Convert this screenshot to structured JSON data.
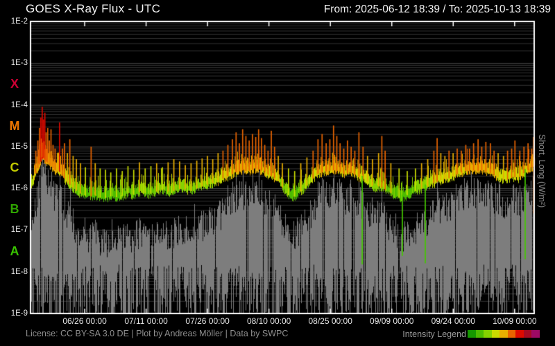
{
  "header": {
    "title": "GOES X-Ray Flux - UTC",
    "date_range": "From: 2025-06-12 18:39 / To: 2025-10-13 18:39"
  },
  "footer": {
    "license": "License: CC BY-SA 3.0 DE | Plot by Andreas Möller | Data by SWPC",
    "legend_label": "Intensity Legend"
  },
  "chart_data": {
    "type": "line",
    "title": "GOES X-Ray Flux - UTC",
    "x_range_labels": [
      "2025-06-12 18:39",
      "2025-10-13 18:39"
    ],
    "total_days": 123,
    "y_scale": "log",
    "y_range": [
      1e-09,
      0.01
    ],
    "grid": "log-minor-on",
    "legend_position": "bottom-right",
    "ylabel_right": "Short, Long (W/m²)",
    "y_ticks": [
      {
        "label": "1E-2",
        "exp": -2
      },
      {
        "label": "1E-3",
        "exp": -3
      },
      {
        "label": "1E-4",
        "exp": -4
      },
      {
        "label": "1E-5",
        "exp": -5
      },
      {
        "label": "1E-6",
        "exp": -6
      },
      {
        "label": "1E-7",
        "exp": -7
      },
      {
        "label": "1E-8",
        "exp": -8
      },
      {
        "label": "1E-9",
        "exp": -9
      }
    ],
    "flare_classes": [
      {
        "label": "X",
        "color": "#cc0033",
        "log_center": -3.5
      },
      {
        "label": "M",
        "color": "#ee7700",
        "log_center": -4.5
      },
      {
        "label": "C",
        "color": "#c3cc00",
        "log_center": -5.5
      },
      {
        "label": "B",
        "color": "#2fa500",
        "log_center": -6.5
      },
      {
        "label": "A",
        "color": "#39c400",
        "log_center": -7.5
      }
    ],
    "x_ticks": [
      {
        "label": "06/26 00:00",
        "day": 13.2229
      },
      {
        "label": "07/11 00:00",
        "day": 28.2229
      },
      {
        "label": "07/26 00:00",
        "day": 43.2229
      },
      {
        "label": "08/10 00:00",
        "day": 58.2229
      },
      {
        "label": "08/25 00:00",
        "day": 73.2229
      },
      {
        "label": "09/09 00:00",
        "day": 88.2229
      },
      {
        "label": "09/24 00:00",
        "day": 103.2229
      },
      {
        "label": "10/09 00:00",
        "day": 118.2229
      }
    ],
    "intensity_legend": {
      "colors": [
        "#159800",
        "#4cbb00",
        "#85d200",
        "#c9dc00",
        "#e8ae00",
        "#e86400",
        "#dc0a00",
        "#a50a23",
        "#9c0a64"
      ],
      "thresholds": [
        6e-07,
        1.2e-06,
        2e-06,
        3.5e-06,
        8e-06,
        3.5e-05,
        0.0001,
        0.0005
      ]
    },
    "series": [
      {
        "name": "Long",
        "style": "intensity-colored-line",
        "baseline_daily": [
          1.3e-06,
          2.2e-06,
          4e-06,
          6.5e-06,
          5e-06,
          4e-06,
          3.2e-06,
          3e-06,
          2.2e-06,
          1.6e-06,
          1.3e-06,
          1.05e-06,
          9e-07,
          8e-07,
          7.5e-07,
          7.5e-07,
          8e-07,
          7e-07,
          6.8e-07,
          7e-07,
          8e-07,
          7.2e-07,
          7.5e-07,
          8e-07,
          9e-07,
          8e-07,
          9e-07,
          1e-06,
          9e-07,
          8.5e-07,
          9e-07,
          1e-06,
          1.1e-06,
          1e-06,
          9.5e-07,
          1e-06,
          1.1e-06,
          1.2e-06,
          1.1e-06,
          1e-06,
          1.1e-06,
          1.2e-06,
          1.3e-06,
          1.4e-06,
          1.5e-06,
          1.6e-06,
          1.8e-06,
          2e-06,
          2.2e-06,
          2.5e-06,
          2.8e-06,
          3e-06,
          3.2e-06,
          3e-06,
          3.2e-06,
          3.5e-06,
          3.2e-06,
          3e-06,
          2.5e-06,
          2.2e-06,
          2e-06,
          1.5e-06,
          1e-06,
          8e-07,
          7e-07,
          8e-07,
          1e-06,
          1.2e-06,
          1.5e-06,
          2e-06,
          2.5e-06,
          2.8e-06,
          3e-06,
          3e-06,
          3.2e-06,
          3e-06,
          2.8e-06,
          2.5e-06,
          2.8e-06,
          2.5e-06,
          2.2e-06,
          2e-06,
          1.8e-06,
          1.5e-06,
          1.2e-06,
          1.3e-06,
          1.2e-06,
          1e-06,
          9e-07,
          8e-07,
          7e-07,
          7e-07,
          8e-07,
          9e-07,
          1e-06,
          1.1e-06,
          1.2e-06,
          1.3e-06,
          1.5e-06,
          1.6e-06,
          1.8e-06,
          2e-06,
          2e-06,
          2.2e-06,
          2.5e-06,
          2.8e-06,
          3e-06,
          3e-06,
          3.2e-06,
          3e-06,
          3.2e-06,
          3e-06,
          2.8e-06,
          2.5e-06,
          2.2e-06,
          2e-06,
          1.8e-06,
          2e-06,
          2.2e-06,
          2e-06,
          2.5e-06,
          3e-06,
          3.5e-06,
          4e-06
        ],
        "spikes": [
          [
            1.3,
            8e-06
          ],
          [
            1.8,
            1.4e-05
          ],
          [
            2.2,
            2.8e-05
          ],
          [
            2.5,
            5e-05
          ],
          [
            2.85,
            9e-05
          ],
          [
            3.15,
            4.5e-05
          ],
          [
            3.5,
            6.5e-05
          ],
          [
            3.8,
            2.2e-05
          ],
          [
            4.2,
            2.8e-05
          ],
          [
            4.6,
            1.4e-05
          ],
          [
            5.0,
            2.6e-05
          ],
          [
            5.5,
            1.1e-05
          ],
          [
            6.0,
            9e-06
          ],
          [
            6.6,
            7e-06
          ],
          [
            7.1,
            3.8e-05
          ],
          [
            7.8,
            9e-06
          ],
          [
            8.3,
            1.2e-05
          ],
          [
            9.0,
            7e-06
          ],
          [
            9.6,
            1.5e-05
          ],
          [
            10.4,
            6e-06
          ],
          [
            11.2,
            5e-06
          ],
          [
            12.2,
            4e-06
          ],
          [
            13.4,
            3.2e-06
          ],
          [
            14.8,
            1e-05
          ],
          [
            15.8,
            4e-06
          ],
          [
            17.0,
            3e-06
          ],
          [
            18.3,
            2.8e-06
          ],
          [
            19.6,
            2.4e-06
          ],
          [
            21.0,
            3e-06
          ],
          [
            22.4,
            2.6e-06
          ],
          [
            23.8,
            3.4e-06
          ],
          [
            25.2,
            2.8e-06
          ],
          [
            26.6,
            4.2e-06
          ],
          [
            28.0,
            3e-06
          ],
          [
            29.4,
            3.4e-06
          ],
          [
            30.8,
            4e-06
          ],
          [
            32.2,
            3.2e-06
          ],
          [
            33.6,
            4.2e-06
          ],
          [
            35.0,
            5e-06
          ],
          [
            36.4,
            4.4e-06
          ],
          [
            37.8,
            3.6e-06
          ],
          [
            39.2,
            4e-06
          ],
          [
            40.6,
            4.6e-06
          ],
          [
            41.9,
            5.2e-06
          ],
          [
            43.2,
            6e-06
          ],
          [
            44.5,
            5e-06
          ],
          [
            45.8,
            7e-06
          ],
          [
            47.0,
            8e-06
          ],
          [
            48.2,
            1.1e-05
          ],
          [
            49.3,
            1.5e-05
          ],
          [
            50.2,
            2.2e-05
          ],
          [
            51.0,
            1.2e-05
          ],
          [
            51.8,
            2.6e-05
          ],
          [
            52.6,
            1.8e-05
          ],
          [
            53.4,
            1.4e-05
          ],
          [
            54.2,
            2e-05
          ],
          [
            55.0,
            1.7e-05
          ],
          [
            55.7,
            2.6e-05
          ],
          [
            56.4,
            1.6e-05
          ],
          [
            57.2,
            1.1e-05
          ],
          [
            58.0,
            8e-06
          ],
          [
            58.8,
            2.4e-05
          ],
          [
            59.6,
            1e-05
          ],
          [
            60.5,
            6e-06
          ],
          [
            61.5,
            4e-06
          ],
          [
            63.0,
            3e-06
          ],
          [
            64.5,
            2.6e-06
          ],
          [
            66.0,
            4e-06
          ],
          [
            67.5,
            5.5e-06
          ],
          [
            69.0,
            8e-06
          ],
          [
            70.2,
            1.5e-05
          ],
          [
            71.2,
            2e-05
          ],
          [
            72.2,
            1.2e-05
          ],
          [
            73.1,
            1.5e-05
          ],
          [
            74.0,
            3.2e-05
          ],
          [
            74.8,
            1.8e-05
          ],
          [
            75.6,
            1.2e-05
          ],
          [
            76.5,
            9e-06
          ],
          [
            77.4,
            1.4e-05
          ],
          [
            78.3,
            1e-05
          ],
          [
            79.2,
            8e-06
          ],
          [
            80.2,
            2.2e-05
          ],
          [
            81.2,
            1e-05
          ],
          [
            82.3,
            6e-06
          ],
          [
            83.5,
            5e-06
          ],
          [
            85.0,
            7e-06
          ],
          [
            85.8,
            1.8e-05
          ],
          [
            86.6,
            8e-06
          ],
          [
            88.0,
            4e-06
          ],
          [
            90.0,
            3e-06
          ],
          [
            92.0,
            2.6e-06
          ],
          [
            94.0,
            3e-06
          ],
          [
            95.5,
            4e-06
          ],
          [
            97.0,
            5e-06
          ],
          [
            98.5,
            8e-06
          ],
          [
            99.3,
            1.6e-05
          ],
          [
            100.2,
            7e-06
          ],
          [
            101.2,
            6e-06
          ],
          [
            102.2,
            8e-06
          ],
          [
            103.2,
            7e-06
          ],
          [
            104.2,
            9e-06
          ],
          [
            105.2,
            8e-06
          ],
          [
            106.3,
            1.1e-05
          ],
          [
            107.2,
            9e-06
          ],
          [
            108.2,
            1.2e-05
          ],
          [
            109.3,
            1.5e-05
          ],
          [
            110.2,
            1e-05
          ],
          [
            111.2,
            1.3e-05
          ],
          [
            112.3,
            1.2e-05
          ],
          [
            113.2,
            8e-06
          ],
          [
            114.2,
            7e-06
          ],
          [
            115.5,
            6e-06
          ],
          [
            116.5,
            8e-06
          ],
          [
            117.5,
            9e-06
          ],
          [
            118.3,
            1.4e-05
          ],
          [
            119.5,
            8e-06
          ],
          [
            120.5,
            1e-05
          ],
          [
            121.5,
            1.2e-05
          ],
          [
            122.4,
            9e-06
          ],
          [
            122.85,
            1.7e-05
          ]
        ],
        "gaps": [
          {
            "day": 81.0,
            "low": 1.5e-08,
            "color": "#44c800"
          },
          {
            "day": 90.8,
            "low": 2.4e-08,
            "color": "#44c800"
          },
          {
            "day": 96.4,
            "low": 1.6e-08,
            "color": "#44c800"
          },
          {
            "day": 120.8,
            "low": 2e-08,
            "color": "#44c800"
          },
          {
            "day": 122.9,
            "low": 2.5e-07,
            "color": "#e86400"
          }
        ]
      },
      {
        "name": "Short",
        "style": "gray-vertical-fill",
        "color": "#7d7d7d",
        "floor": 1e-09,
        "envelope_daily": [
          1.5e-07,
          3e-07,
          8e-07,
          1.5e-06,
          1.2e-06,
          8e-07,
          5e-07,
          6e-07,
          3e-07,
          2e-07,
          1.5e-07,
          1e-07,
          8e-08,
          6e-08,
          5e-08,
          6e-08,
          7e-08,
          5e-08,
          4e-08,
          5e-08,
          6e-08,
          5e-08,
          5e-08,
          6e-08,
          7e-08,
          6e-08,
          7e-08,
          8e-08,
          7e-08,
          6e-08,
          7e-08,
          8e-08,
          9e-08,
          8e-08,
          7e-08,
          8e-08,
          9e-08,
          1e-07,
          9e-08,
          8e-08,
          9e-08,
          1e-07,
          1.1e-07,
          1.2e-07,
          1.4e-07,
          1.6e-07,
          2e-07,
          2.5e-07,
          3e-07,
          4e-07,
          5e-07,
          6e-07,
          5.5e-07,
          5e-07,
          6e-07,
          7e-07,
          6e-07,
          5e-07,
          4e-07,
          3.5e-07,
          3e-07,
          2e-07,
          1e-07,
          7e-08,
          6e-08,
          8e-08,
          1e-07,
          1.5e-07,
          2e-07,
          3e-07,
          4.5e-07,
          6e-07,
          7e-07,
          7e-07,
          9e-07,
          7e-07,
          6e-07,
          5e-07,
          6e-07,
          5e-07,
          4.5e-07,
          4e-07,
          3e-07,
          2.5e-07,
          2e-07,
          2.5e-07,
          2e-07,
          1.5e-07,
          1e-07,
          8e-08,
          6e-08,
          6e-08,
          7e-08,
          8e-08,
          1e-07,
          1.2e-07,
          1.4e-07,
          1.6e-07,
          2e-07,
          2.5e-07,
          3e-07,
          3.5e-07,
          3.5e-07,
          4e-07,
          5e-07,
          6e-07,
          7e-07,
          7e-07,
          8e-07,
          7e-07,
          8e-07,
          7e-07,
          6.5e-07,
          5.5e-07,
          5e-07,
          4e-07,
          3.5e-07,
          4e-07,
          5e-07,
          4e-07,
          5.5e-07,
          7e-07,
          8e-07,
          9e-07
        ]
      }
    ]
  }
}
